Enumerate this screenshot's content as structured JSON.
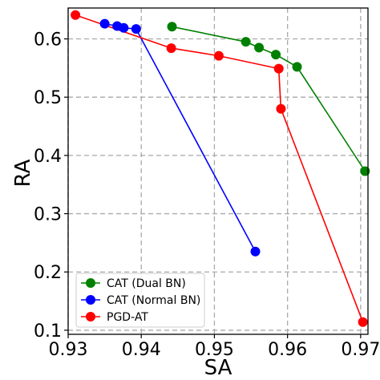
{
  "chart_data": {
    "type": "line",
    "xlabel": "SA",
    "ylabel": "RA",
    "xlim": [
      0.93,
      0.971
    ],
    "ylim": [
      0.093,
      0.653
    ],
    "xticks": [
      0.93,
      0.94,
      0.95,
      0.96,
      0.97
    ],
    "xtick_labels": [
      "0.93",
      "0.94",
      "0.95",
      "0.96",
      "0.97"
    ],
    "yticks": [
      0.1,
      0.2,
      0.3,
      0.4,
      0.5,
      0.6
    ],
    "ytick_labels": [
      "0.1",
      "0.2",
      "0.3",
      "0.4",
      "0.5",
      "0.6"
    ],
    "grid": true,
    "legend_position": "bottom-left",
    "series": [
      {
        "name": "CAT (Dual BN)",
        "color": "#008000",
        "x": [
          0.9442,
          0.9543,
          0.9561,
          0.9584,
          0.9613,
          0.9706
        ],
        "y": [
          0.621,
          0.595,
          0.585,
          0.573,
          0.552,
          0.373
        ]
      },
      {
        "name": "CAT (Normal BN)",
        "color": "#0000ff",
        "x": [
          0.935,
          0.9367,
          0.9376,
          0.9393,
          0.9556
        ],
        "y": [
          0.626,
          0.622,
          0.619,
          0.617,
          0.235
        ]
      },
      {
        "name": "PGD-AT",
        "color": "#ff0000",
        "x": [
          0.931,
          0.9441,
          0.9506,
          0.9588,
          0.9591,
          0.9703
        ],
        "y": [
          0.641,
          0.584,
          0.571,
          0.549,
          0.48,
          0.114
        ]
      }
    ]
  }
}
